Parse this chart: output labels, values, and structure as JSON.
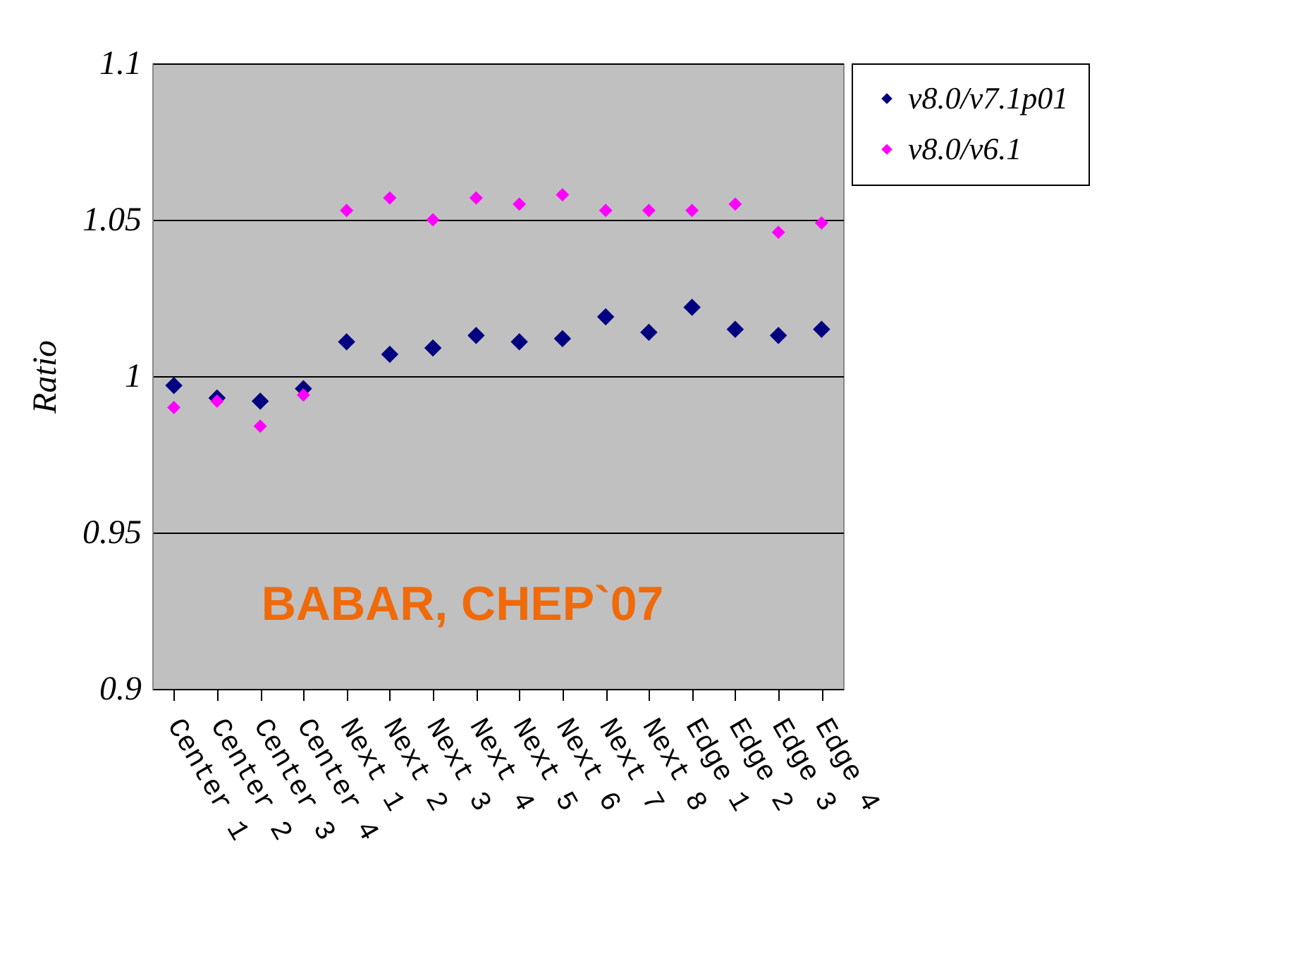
{
  "chart_data": {
    "type": "scatter",
    "ylabel": "Ratio",
    "categories": [
      "Center 1",
      "Center 2",
      "Center 3",
      "Center 4",
      "Next 1",
      "Next 2",
      "Next 3",
      "Next 4",
      "Next 5",
      "Next 6",
      "Next 7",
      "Next 8",
      "Edge 1",
      "Edge 2",
      "Edge 3",
      "Edge 4"
    ],
    "series": [
      {
        "name": "v8.0/v7.1p01",
        "color": "#000080",
        "values": [
          0.997,
          0.993,
          0.992,
          0.996,
          1.011,
          1.007,
          1.009,
          1.013,
          1.011,
          1.012,
          1.019,
          1.014,
          1.022,
          1.015,
          1.013,
          1.015
        ]
      },
      {
        "name": "v8.0/v6.1",
        "color": "#ff00ff",
        "values": [
          0.99,
          0.992,
          0.984,
          0.994,
          1.053,
          1.057,
          1.05,
          1.057,
          1.055,
          1.058,
          1.053,
          1.053,
          1.053,
          1.055,
          1.046,
          1.049
        ]
      }
    ],
    "ylim": [
      0.9,
      1.1
    ],
    "yticks": [
      0.9,
      0.95,
      1,
      1.05,
      1.1
    ],
    "grid": "y",
    "legend": "right",
    "marker": "diamond",
    "annotations": [
      "BABAR, CHEP`07"
    ]
  }
}
